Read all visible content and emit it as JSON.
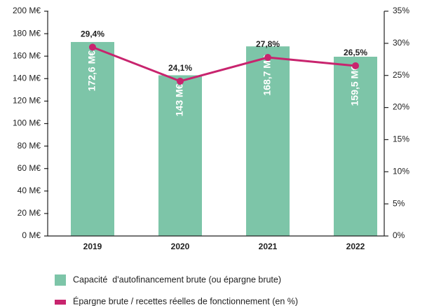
{
  "chart_data": {
    "type": "bar+line",
    "categories": [
      "2019",
      "2020",
      "2021",
      "2022"
    ],
    "series": [
      {
        "name": "Capacité  d'autofinancement brute (ou épargne brute)",
        "type": "bar",
        "color": "#7dc5a8",
        "axis": "y",
        "values": [
          172.6,
          143,
          168.7,
          159.5
        ],
        "value_labels": [
          "172,6 M€",
          "143 M€",
          "168,7 M€",
          "159,5 M€"
        ]
      },
      {
        "name": "Épargne brute / recettes réelles de fonctionnement (en %)",
        "type": "line",
        "color": "#c8246e",
        "axis": "y2",
        "values": [
          29.4,
          24.1,
          27.8,
          26.5
        ],
        "value_labels": [
          "29,4%",
          "24,1%",
          "27,8%",
          "26,5%"
        ]
      }
    ],
    "ylim": [
      0,
      200
    ],
    "yticks": [
      {
        "value": 0,
        "label": "0 M€"
      },
      {
        "value": 20,
        "label": "20 M€"
      },
      {
        "value": 40,
        "label": "40 M€"
      },
      {
        "value": 60,
        "label": "60 M€"
      },
      {
        "value": 80,
        "label": "80 M€"
      },
      {
        "value": 100,
        "label": "100 M€"
      },
      {
        "value": 120,
        "label": "120 M€"
      },
      {
        "value": 140,
        "label": "140 M€"
      },
      {
        "value": 160,
        "label": "160 M€"
      },
      {
        "value": 180,
        "label": "180 M€"
      },
      {
        "value": 200,
        "label": "200 M€"
      }
    ],
    "y2lim": [
      0,
      35
    ],
    "y2ticks": [
      {
        "value": 0,
        "label": "0%"
      },
      {
        "value": 5,
        "label": "5%"
      },
      {
        "value": 10,
        "label": "10%"
      },
      {
        "value": 15,
        "label": "15%"
      },
      {
        "value": 20,
        "label": "20%"
      },
      {
        "value": 25,
        "label": "25%"
      },
      {
        "value": 30,
        "label": "30%"
      },
      {
        "value": 35,
        "label": "35%"
      }
    ]
  }
}
